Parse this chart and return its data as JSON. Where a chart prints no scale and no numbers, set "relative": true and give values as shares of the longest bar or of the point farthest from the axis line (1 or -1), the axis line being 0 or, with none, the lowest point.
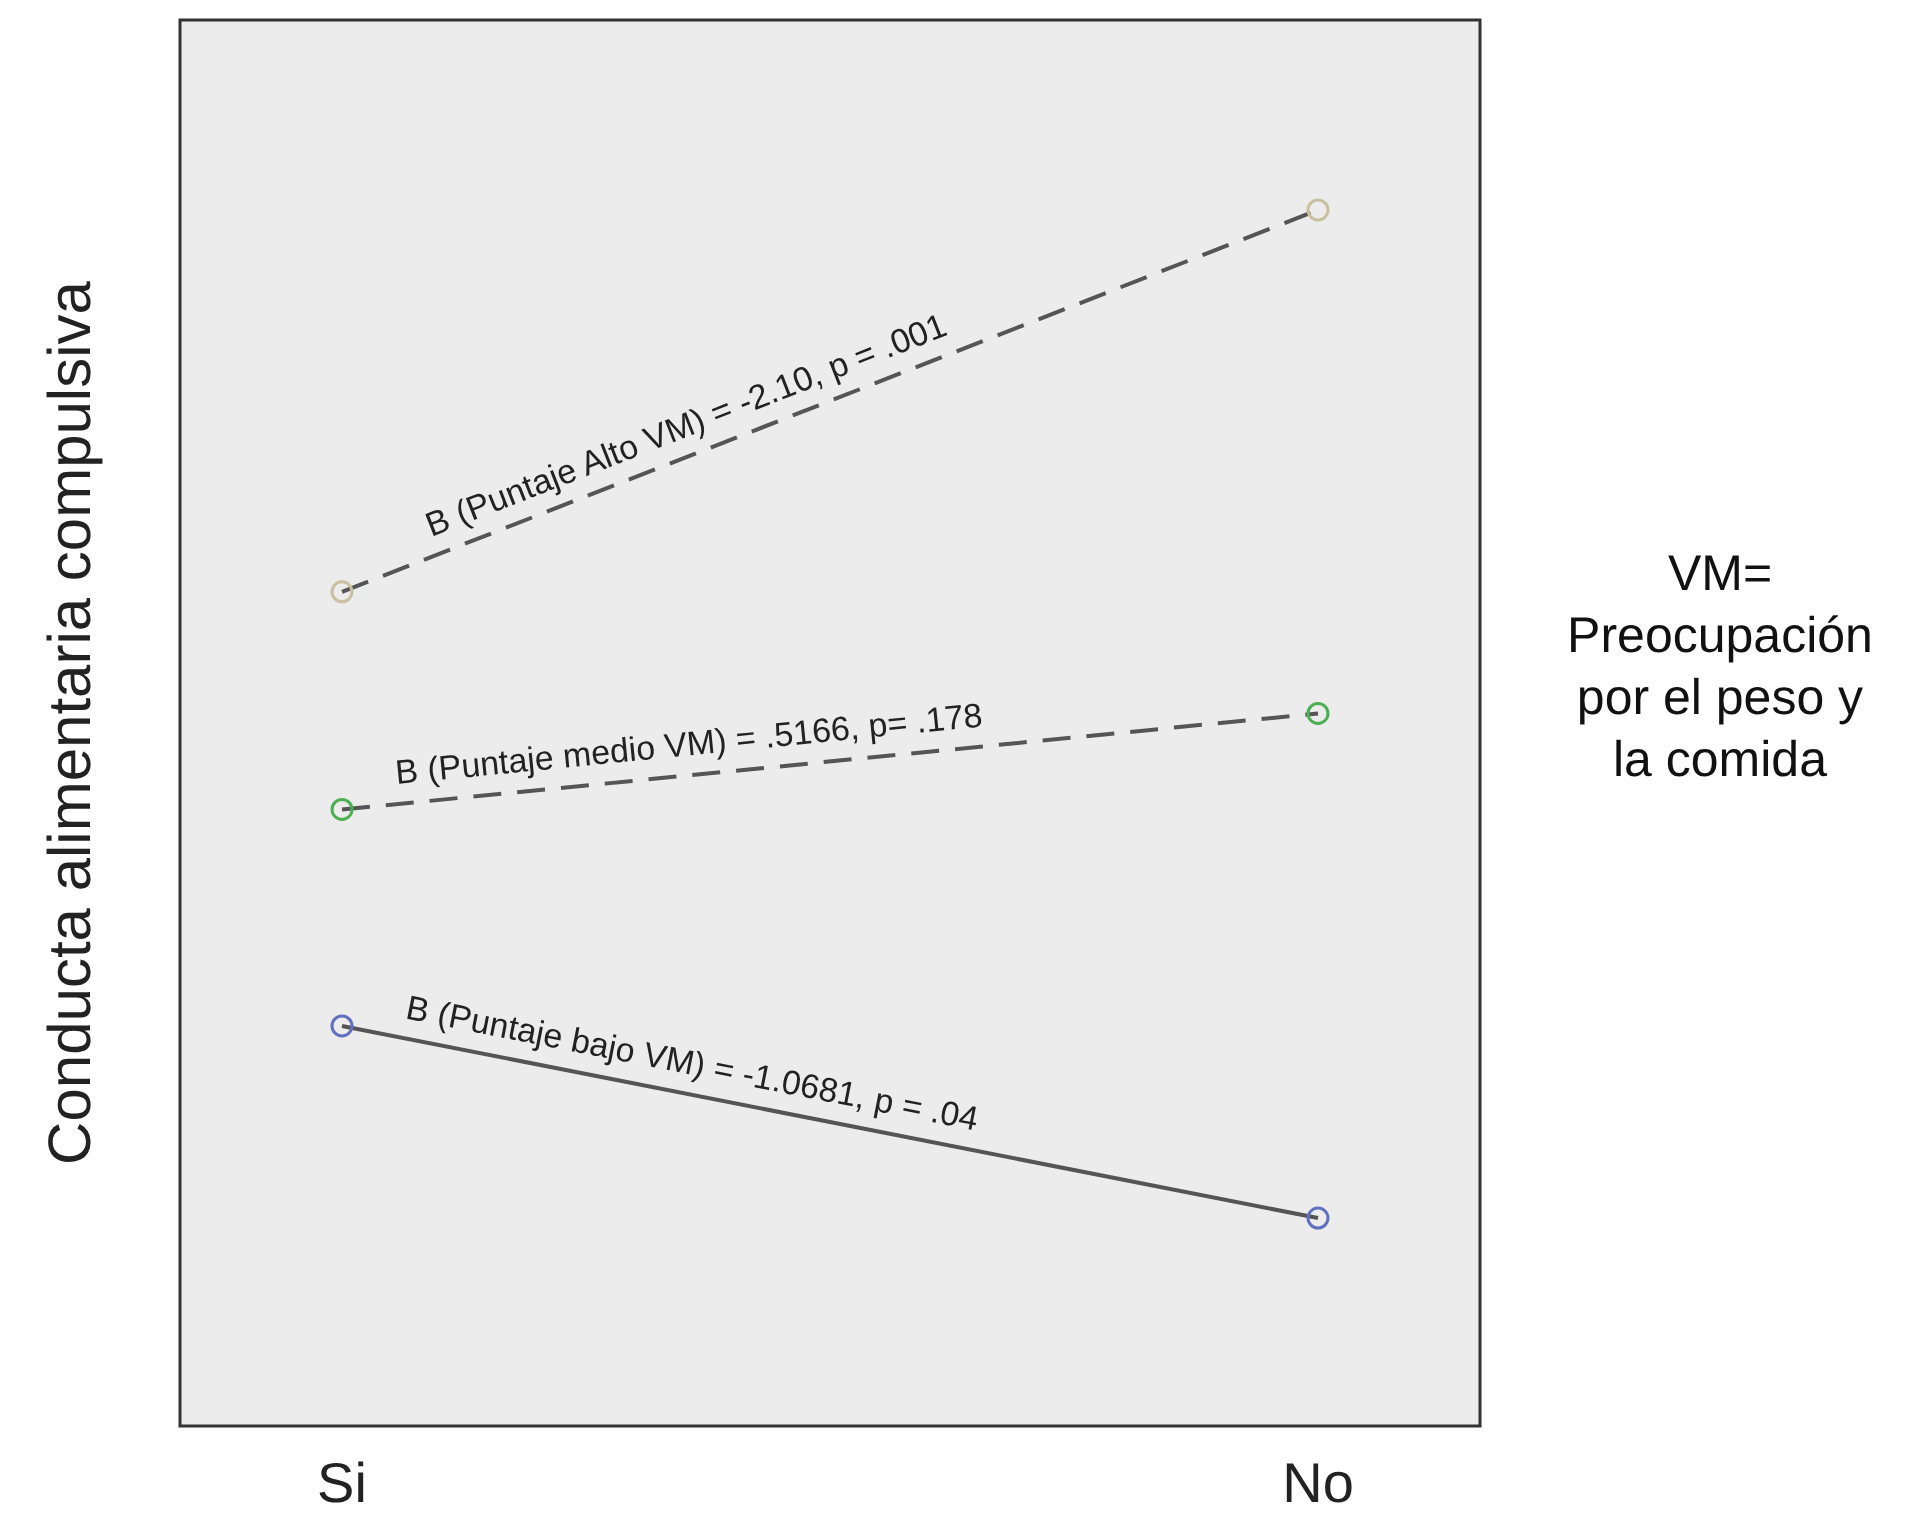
{
  "chart_data": {
    "type": "line",
    "relative": true,
    "ylabel": "Conducta alimentaria compulsiva",
    "categories": [
      "Si",
      "No"
    ],
    "marker": "circle",
    "series": [
      {
        "color": "#555555",
        "colors": [
          "#c8c0a0",
          "#c8c0a0"
        ],
        "line_style": "dashed",
        "values": [
          0.686,
          1
        ]
      },
      {
        "color": "#555555",
        "colors": [
          "#4caf50",
          "#4caf50"
        ],
        "line_style": "dashed",
        "values": [
          0.507,
          0.586
        ]
      },
      {
        "color": "#555555",
        "colors": [
          "#6070c0",
          "#6070c0"
        ],
        "line_style": "solid",
        "values": [
          0.329,
          0.171
        ]
      }
    ],
    "annotations": [
      "B (Puntaje Alto VM) = -2.10, p = .001",
      "B (Puntaje medio VM) = .5166, p= .178",
      "B (Puntaje bajo VM) = -1.0681, p = .04",
      "VM=\nPreocupación\npor el peso y\nla comida"
    ]
  }
}
